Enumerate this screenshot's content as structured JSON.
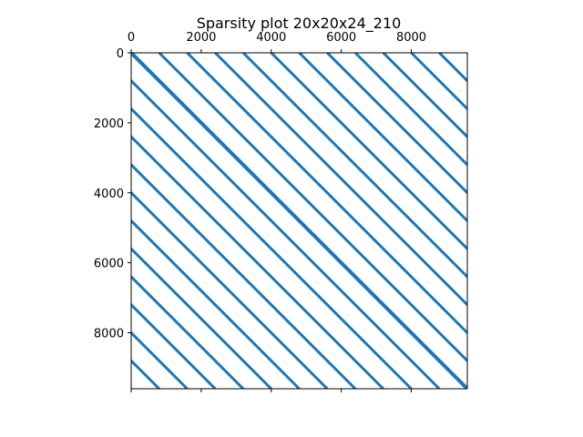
{
  "chart_data": {
    "type": "sparsity",
    "title": "Sparsity plot 20x20x24_210",
    "xlabel": "",
    "ylabel": "",
    "x_ticks": [
      "0",
      "2000",
      "4000",
      "6000",
      "8000"
    ],
    "y_ticks": [
      "0",
      "2000",
      "4000",
      "6000",
      "8000"
    ],
    "x_tick_values": [
      0,
      2000,
      4000,
      6000,
      8000
    ],
    "y_tick_values": [
      0,
      2000,
      4000,
      6000,
      8000
    ],
    "xlim": [
      0,
      9600
    ],
    "ylim": [
      9600,
      0
    ],
    "x_axis_position": "top",
    "grid": false,
    "legend": false,
    "color": "#1f77b4",
    "diagonal_offsets": [
      -9600,
      -8800,
      -8000,
      -7200,
      -6400,
      -5600,
      -4800,
      -4000,
      -3200,
      -2400,
      -1600,
      -800,
      0,
      800,
      1600,
      2400,
      3200,
      4000,
      4800,
      5600,
      6400,
      7200,
      8000,
      8800,
      9600
    ]
  }
}
